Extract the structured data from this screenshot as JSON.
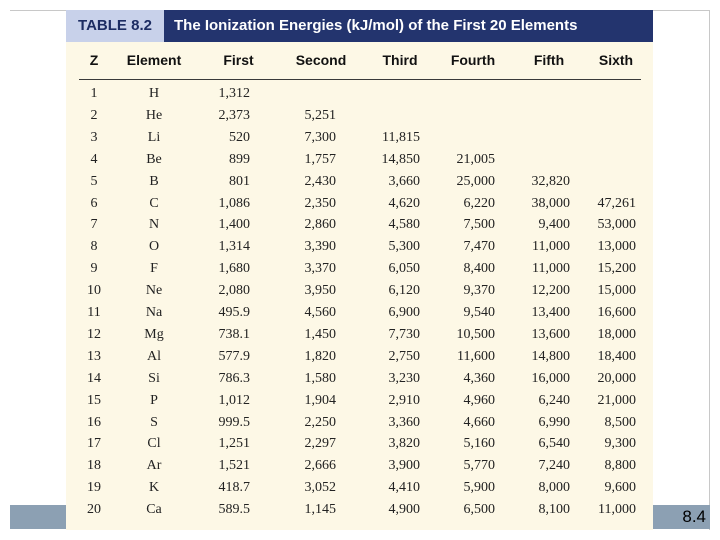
{
  "slide": {
    "number": "8.4"
  },
  "table": {
    "label": "TABLE 8.2",
    "title": "The Ionization Energies (kJ/mol) of the First 20 Elements",
    "columns": [
      "Z",
      "Element",
      "First",
      "Second",
      "Third",
      "Fourth",
      "Fifth",
      "Sixth"
    ],
    "rows": [
      [
        "1",
        "H",
        "1,312",
        "",
        "",
        "",
        "",
        ""
      ],
      [
        "2",
        "He",
        "2,373",
        "5,251",
        "",
        "",
        "",
        ""
      ],
      [
        "3",
        "Li",
        "520",
        "7,300",
        "11,815",
        "",
        "",
        ""
      ],
      [
        "4",
        "Be",
        "899",
        "1,757",
        "14,850",
        "21,005",
        "",
        ""
      ],
      [
        "5",
        "B",
        "801",
        "2,430",
        "3,660",
        "25,000",
        "32,820",
        ""
      ],
      [
        "6",
        "C",
        "1,086",
        "2,350",
        "4,620",
        "6,220",
        "38,000",
        "47,261"
      ],
      [
        "7",
        "N",
        "1,400",
        "2,860",
        "4,580",
        "7,500",
        "9,400",
        "53,000"
      ],
      [
        "8",
        "O",
        "1,314",
        "3,390",
        "5,300",
        "7,470",
        "11,000",
        "13,000"
      ],
      [
        "9",
        "F",
        "1,680",
        "3,370",
        "6,050",
        "8,400",
        "11,000",
        "15,200"
      ],
      [
        "10",
        "Ne",
        "2,080",
        "3,950",
        "6,120",
        "9,370",
        "12,200",
        "15,000"
      ],
      [
        "11",
        "Na",
        "495.9",
        "4,560",
        "6,900",
        "9,540",
        "13,400",
        "16,600"
      ],
      [
        "12",
        "Mg",
        "738.1",
        "1,450",
        "7,730",
        "10,500",
        "13,600",
        "18,000"
      ],
      [
        "13",
        "Al",
        "577.9",
        "1,820",
        "2,750",
        "11,600",
        "14,800",
        "18,400"
      ],
      [
        "14",
        "Si",
        "786.3",
        "1,580",
        "3,230",
        "4,360",
        "16,000",
        "20,000"
      ],
      [
        "15",
        "P",
        "1,012",
        "1,904",
        "2,910",
        "4,960",
        "6,240",
        "21,000"
      ],
      [
        "16",
        "S",
        "999.5",
        "2,250",
        "3,360",
        "4,660",
        "6,990",
        "8,500"
      ],
      [
        "17",
        "Cl",
        "1,251",
        "2,297",
        "3,820",
        "5,160",
        "6,540",
        "9,300"
      ],
      [
        "18",
        "Ar",
        "1,521",
        "2,666",
        "3,900",
        "5,770",
        "7,240",
        "8,800"
      ],
      [
        "19",
        "K",
        "418.7",
        "3,052",
        "4,410",
        "5,900",
        "8,000",
        "9,600"
      ],
      [
        "20",
        "Ca",
        "589.5",
        "1,145",
        "4,900",
        "6,500",
        "8,100",
        "11,000"
      ]
    ]
  }
}
